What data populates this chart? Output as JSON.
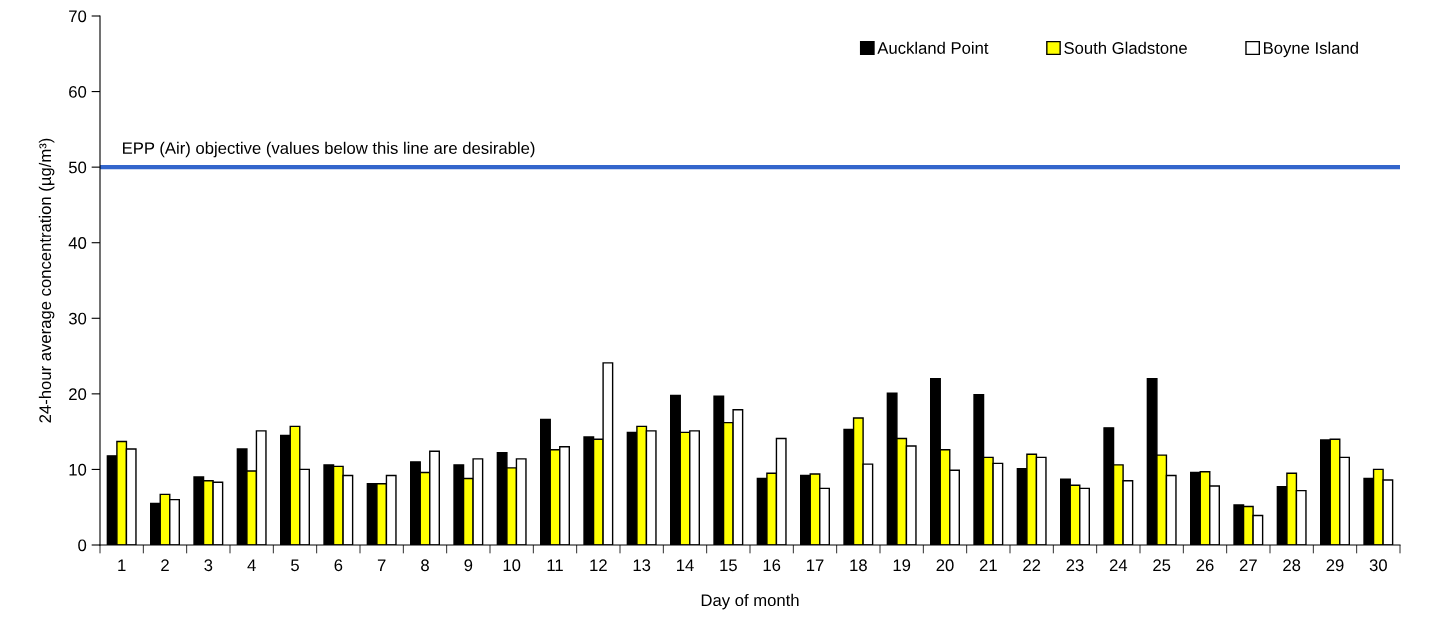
{
  "chart_data": {
    "type": "bar",
    "xlabel": "Day of month",
    "ylabel": "24-hour average concentration (µg/m³)",
    "categories": [
      "1",
      "2",
      "3",
      "4",
      "5",
      "6",
      "7",
      "8",
      "9",
      "10",
      "11",
      "12",
      "13",
      "14",
      "15",
      "16",
      "17",
      "18",
      "19",
      "20",
      "21",
      "22",
      "23",
      "24",
      "25",
      "26",
      "27",
      "28",
      "29",
      "30"
    ],
    "series": [
      {
        "name": "Auckland Point",
        "color": "#000000",
        "values": [
          11.8,
          5.5,
          9.0,
          12.7,
          14.5,
          10.6,
          8.1,
          11.0,
          10.6,
          12.2,
          16.6,
          14.3,
          14.9,
          19.8,
          19.7,
          8.8,
          9.2,
          15.3,
          20.1,
          22.0,
          19.9,
          10.1,
          8.7,
          15.5,
          22.0,
          9.6,
          5.3,
          7.7,
          13.9,
          8.8
        ]
      },
      {
        "name": "South Gladstone",
        "color": "#ffff00",
        "values": [
          13.7,
          6.7,
          8.5,
          9.8,
          15.7,
          10.4,
          8.1,
          9.6,
          8.8,
          10.2,
          12.6,
          14.0,
          15.7,
          14.9,
          16.2,
          9.5,
          9.4,
          16.8,
          14.1,
          12.6,
          11.6,
          12.0,
          7.9,
          10.6,
          11.9,
          9.7,
          5.1,
          9.5,
          14.0,
          10.0
        ]
      },
      {
        "name": "Boyne Island",
        "color": "#ffffff",
        "values": [
          12.7,
          6.0,
          8.3,
          15.1,
          10.0,
          9.2,
          9.2,
          12.4,
          11.4,
          11.4,
          13.0,
          24.1,
          15.1,
          15.1,
          17.9,
          14.1,
          7.5,
          10.7,
          13.1,
          9.9,
          10.8,
          11.6,
          7.5,
          8.5,
          9.2,
          7.8,
          3.9,
          7.2,
          11.6,
          8.6
        ]
      }
    ],
    "ylim": [
      0,
      70
    ],
    "yticks": [
      0,
      10,
      20,
      30,
      40,
      50,
      60,
      70
    ],
    "ref_lines": [
      {
        "axis": "y",
        "value": 50,
        "label": "EPP (Air) objective (values below this line are desirable)",
        "color": "#3366cc"
      }
    ],
    "legend": "top right",
    "grid": false
  }
}
